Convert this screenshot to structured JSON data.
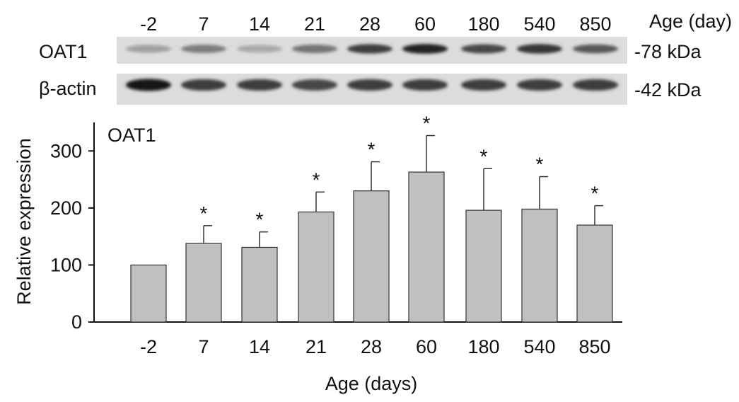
{
  "blot": {
    "age_header": "Age (day)",
    "lanes": [
      "-2",
      "7",
      "14",
      "21",
      "28",
      "60",
      "180",
      "540",
      "850"
    ],
    "rows": [
      {
        "label": "OAT1",
        "marker": "-78 kDa",
        "intensity": [
          0.25,
          0.45,
          0.2,
          0.5,
          0.8,
          0.95,
          0.75,
          0.85,
          0.65
        ]
      },
      {
        "label": "β-actin",
        "marker": "-42 kDa",
        "intensity": [
          1.0,
          0.8,
          0.8,
          0.75,
          0.8,
          0.8,
          0.8,
          0.8,
          0.8
        ]
      }
    ]
  },
  "chart_data": {
    "type": "bar",
    "title": "OAT1",
    "xlabel": "Age (days)",
    "ylabel": "Relative expression",
    "categories": [
      "-2",
      "7",
      "14",
      "21",
      "28",
      "60",
      "180",
      "540",
      "850"
    ],
    "values": [
      100,
      138,
      131,
      193,
      230,
      263,
      196,
      198,
      170
    ],
    "errors": [
      0,
      31,
      27,
      35,
      51,
      64,
      73,
      57,
      34
    ],
    "significant": [
      false,
      true,
      true,
      true,
      true,
      true,
      true,
      true,
      true
    ],
    "significance_mark": "*",
    "ylim": [
      0,
      350
    ],
    "yticks": [
      "0",
      "100",
      "200",
      "300"
    ],
    "bar_color": "#c0c0c0",
    "grid": false,
    "legend": "none"
  }
}
